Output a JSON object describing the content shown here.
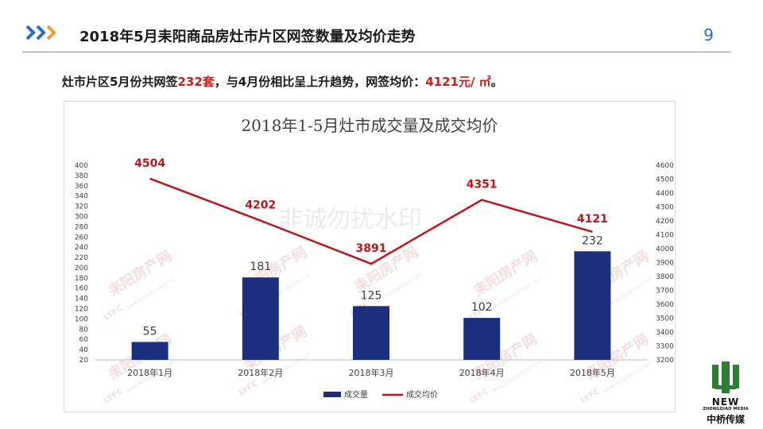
{
  "header": {
    "title": "2018年5月耒阳商品房灶市片区网签数量及均价走势",
    "page_number": "9"
  },
  "summary": {
    "prefix": "灶市片区5月份共网签",
    "units": "232套",
    "middle": "，与4月份相比呈上升趋势，网签均价：",
    "price": "4121元/ ㎡",
    "suffix": "。"
  },
  "chart_data": {
    "type": "bar+line",
    "title": "2018年1-5月灶市成交量及成交均价",
    "categories": [
      "2018年1月",
      "2018年2月",
      "2018年3月",
      "2018年4月",
      "2018年5月"
    ],
    "series": [
      {
        "name": "成交量",
        "type": "bar",
        "axis": "left",
        "values": [
          55,
          181,
          125,
          102,
          232
        ],
        "color": "#1b2f7c"
      },
      {
        "name": "成交均价",
        "type": "line",
        "axis": "right",
        "values": [
          4504,
          4202,
          3891,
          4351,
          4121
        ],
        "color": "#c0141c"
      }
    ],
    "y_left": {
      "min": 20,
      "max": 400,
      "step": 20
    },
    "y_right": {
      "min": 3200,
      "max": 4600,
      "step": 100
    },
    "grid": false,
    "legend": "bottom-center"
  },
  "watermark": {
    "brand": "耒阳房产网",
    "letters": "LYFC",
    "site": "www.leiyanghouse.com",
    "center_text": "非诚勿扰水印"
  },
  "logo": {
    "new": "NEW",
    "media": "ZHONGQIAO MEDIA",
    "chinese": "中桥传媒"
  },
  "colors": {
    "bar": "#1b2f7c",
    "line": "#c0141c",
    "accent": "#2a6fbd"
  }
}
